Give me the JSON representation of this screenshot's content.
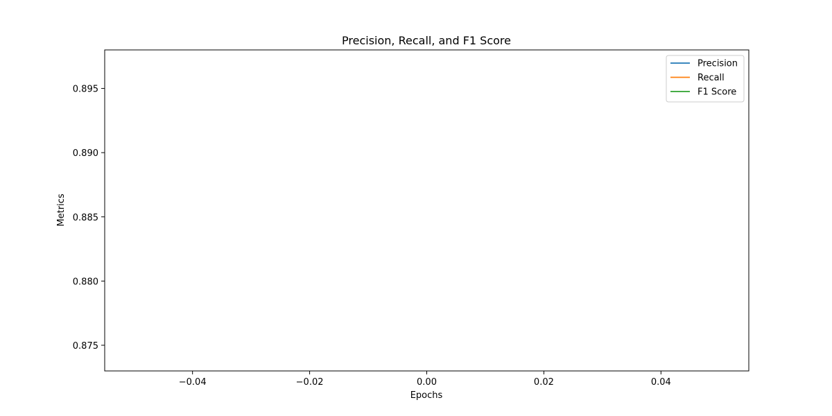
{
  "chart_data": {
    "type": "line",
    "title": "Precision, Recall, and F1 Score",
    "xlabel": "Epochs",
    "ylabel": "Metrics",
    "xlim": [
      -0.055,
      0.055
    ],
    "ylim": [
      0.873,
      0.898
    ],
    "x_ticks": [
      "−0.04",
      "−0.02",
      "0.00",
      "0.02",
      "0.04"
    ],
    "x_tick_values": [
      -0.04,
      -0.02,
      0.0,
      0.02,
      0.04
    ],
    "y_ticks": [
      "0.875",
      "0.880",
      "0.885",
      "0.890",
      "0.895"
    ],
    "y_tick_values": [
      0.875,
      0.88,
      0.885,
      0.89,
      0.895
    ],
    "grid": false,
    "legend_position": "top-right",
    "series": [
      {
        "name": "Precision",
        "color": "#1f77b4",
        "x": [],
        "y": []
      },
      {
        "name": "Recall",
        "color": "#ff7f0e",
        "x": [],
        "y": []
      },
      {
        "name": "F1 Score",
        "color": "#2ca02c",
        "x": [],
        "y": []
      }
    ]
  }
}
